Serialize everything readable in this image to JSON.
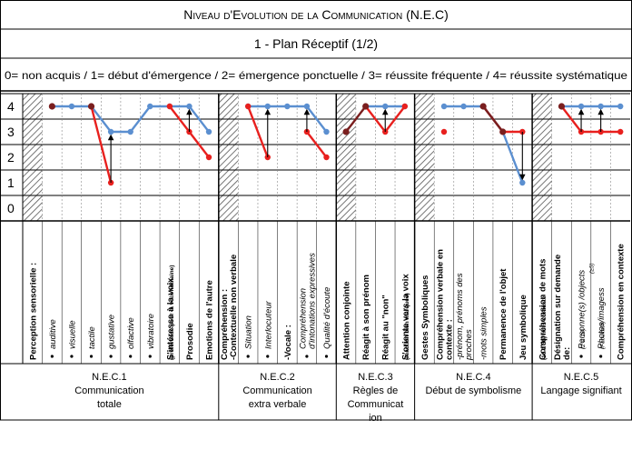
{
  "header": {
    "title": "Niveau d'Evolution de la Communication (N.E.C)",
    "subtitle": "1 - Plan Réceptif (1/2)",
    "legend_scale": "0= non acquis / 1= début d'émergence / 2= émergence ponctuelle / 3= réussite fréquente / 4= réussite systématique"
  },
  "colors": {
    "blue": "#5b8fd0",
    "red": "#e8201e",
    "dark": "#7a1e1e",
    "grid": "#000000"
  },
  "chart_data": {
    "type": "line",
    "y_ticks": [
      "0",
      "1",
      "2",
      "3",
      "4"
    ],
    "ylim": [
      0,
      4
    ],
    "grid": true,
    "categories": [
      {
        "label": "Perception sensorielle :",
        "bold": true,
        "striped": true
      },
      {
        "label": "auditive",
        "bullet": true,
        "italic": true
      },
      {
        "label": "visuelle",
        "bullet": true,
        "italic": true
      },
      {
        "label": "tactile",
        "bullet": true,
        "italic": true
      },
      {
        "label": "gustative",
        "bullet": true,
        "italic": true
      },
      {
        "label": "olfactive",
        "bullet": true,
        "italic": true
      },
      {
        "label": "vibratoire",
        "bullet": true,
        "italic": true
      },
      {
        "label": "S'intéresse à la voix",
        "note": "(préférence pour la voix humaine)",
        "bold": true
      },
      {
        "label": "Prosodie",
        "bold": true
      },
      {
        "label": "Emotions de l'autre",
        "bold": true
      },
      {
        "label": "Compréhension :",
        "label2": "-Contextuelle non verbale",
        "bold": true,
        "striped": true
      },
      {
        "label": "Situation",
        "bullet": true,
        "italic": true
      },
      {
        "label": "Interlocuteur",
        "bullet": true,
        "italic": true
      },
      {
        "label": "-Vocale :",
        "bold": true
      },
      {
        "label": "Compréhension",
        "label2": "d'intonations expressives",
        "bullet": true,
        "italic": true
      },
      {
        "label": "Qualité d'écoute",
        "bullet": true,
        "italic": true
      },
      {
        "label": "Attention conjointe",
        "bold": true,
        "striped": true
      },
      {
        "label": "Réagit à son prénom",
        "bold": true
      },
      {
        "label": "Réagit au \"non\"",
        "bold": true
      },
      {
        "label": "S'oriente vers la voix",
        "note": "(réaction bien marquée)",
        "bold": true
      },
      {
        "label": "Gestes Symboliques",
        "bold": true,
        "striped": true
      },
      {
        "label": "Compréhension verbale en",
        "label2": "contexte :",
        "bold": true
      },
      {
        "label": "-prénom, prénoms des",
        "label2": "proches",
        "italic": true
      },
      {
        "label": "-mots simples",
        "italic": true
      },
      {
        "label": "Permanence de l'objet",
        "bold": true
      },
      {
        "label": "Jeu symbolique",
        "bold": true
      },
      {
        "label": "Compréhension de mots",
        "note": "(10 à 30) hors contexte",
        "bold": true,
        "striped": true
      },
      {
        "label": "Désignation sur demande",
        "label2": "de:",
        "bold": true
      },
      {
        "label": "Personne(s) /objects",
        "note": "(2 à 10)",
        "bullet": true,
        "italic": true
      },
      {
        "label": "Photos/imagess",
        "note": "(Facultatif)",
        "note2": "(≥5)",
        "bullet": true,
        "italic": true
      },
      {
        "label": "Compréhension en contexte",
        "bold": true
      }
    ],
    "series": [
      {
        "color": "blue",
        "values": [
          null,
          4,
          4,
          4,
          3,
          3,
          4,
          4,
          4,
          3,
          null,
          4,
          4,
          4,
          4,
          3,
          null,
          4,
          4,
          4,
          null,
          4,
          4,
          4,
          3,
          1,
          null,
          4,
          4,
          4,
          4
        ]
      },
      {
        "color": "red",
        "values": [
          null,
          null,
          null,
          4,
          1,
          null,
          null,
          4,
          3,
          2,
          null,
          4,
          2,
          null,
          3,
          2,
          null,
          4,
          3,
          4,
          null,
          3,
          null,
          4,
          3,
          3,
          null,
          4,
          3,
          3,
          3
        ]
      },
      {
        "color": "dark",
        "values": [
          null,
          4,
          null,
          4,
          null,
          null,
          null,
          null,
          null,
          null,
          null,
          null,
          null,
          null,
          null,
          null,
          3,
          4,
          null,
          null,
          null,
          null,
          null,
          4,
          3,
          null,
          null,
          4,
          null,
          null,
          null
        ]
      }
    ],
    "arrows": [
      {
        "index": 4,
        "from": 1,
        "to": 3
      },
      {
        "index": 8,
        "from": 3,
        "to": 4
      },
      {
        "index": 12,
        "from": 2,
        "to": 4
      },
      {
        "index": 14,
        "from": 3,
        "to": 4
      },
      {
        "index": 18,
        "from": 3,
        "to": 4
      },
      {
        "index": 25,
        "from": 3,
        "to": 1
      },
      {
        "index": 28,
        "from": 3,
        "to": 4
      },
      {
        "index": 29,
        "from": 3,
        "to": 4
      }
    ],
    "groups": [
      {
        "code": "N.E.C.1",
        "lines": [
          "Communication",
          "totale"
        ],
        "start": 0,
        "end": 9
      },
      {
        "code": "N.E.C.2",
        "lines": [
          "Communication",
          "extra verbale"
        ],
        "start": 10,
        "end": 15
      },
      {
        "code": "N.E.C.3",
        "lines": [
          "Règles de",
          "Communicat",
          "ion"
        ],
        "start": 16,
        "end": 19
      },
      {
        "code": "N.E.C.4",
        "lines": [
          "Début de symbolisme"
        ],
        "start": 20,
        "end": 25
      },
      {
        "code": "N.E.C.5",
        "lines": [
          "Langage signifiant"
        ],
        "start": 26,
        "end": 30
      }
    ]
  }
}
